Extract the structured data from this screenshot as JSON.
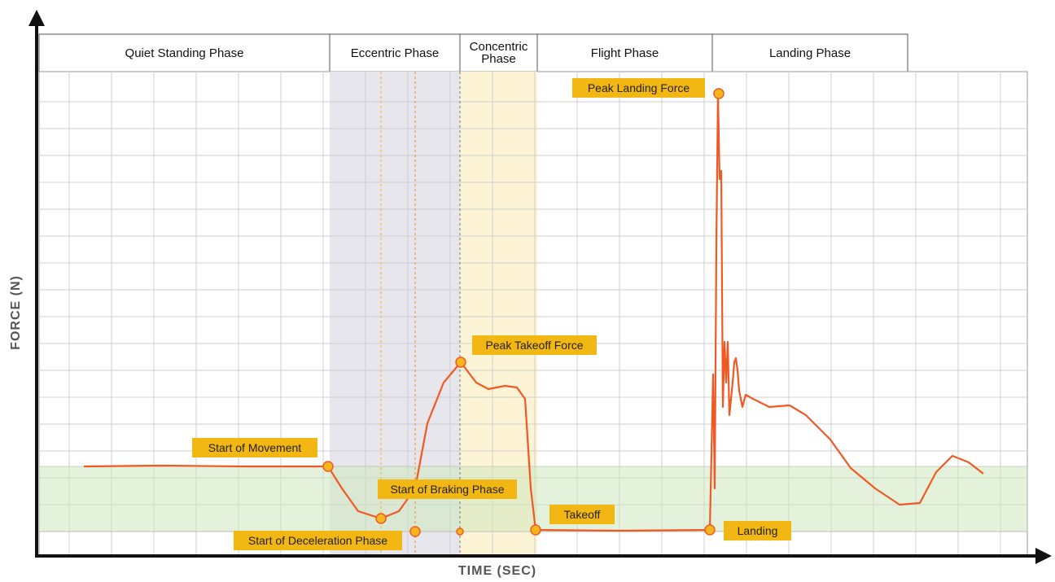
{
  "axes": {
    "y_label": "FORCE (N)",
    "x_label": "TIME (SEC)"
  },
  "phases": [
    "Quiet Standing Phase",
    "Eccentric Phase",
    "Concentric Phase",
    "Flight Phase",
    "Landing Phase"
  ],
  "annotations": [
    "Start of Movement",
    "Start of Braking Phase",
    "Start of Deceleration Phase",
    "Peak Takeoff Force",
    "Takeoff",
    "Landing",
    "Peak Landing Force"
  ]
}
